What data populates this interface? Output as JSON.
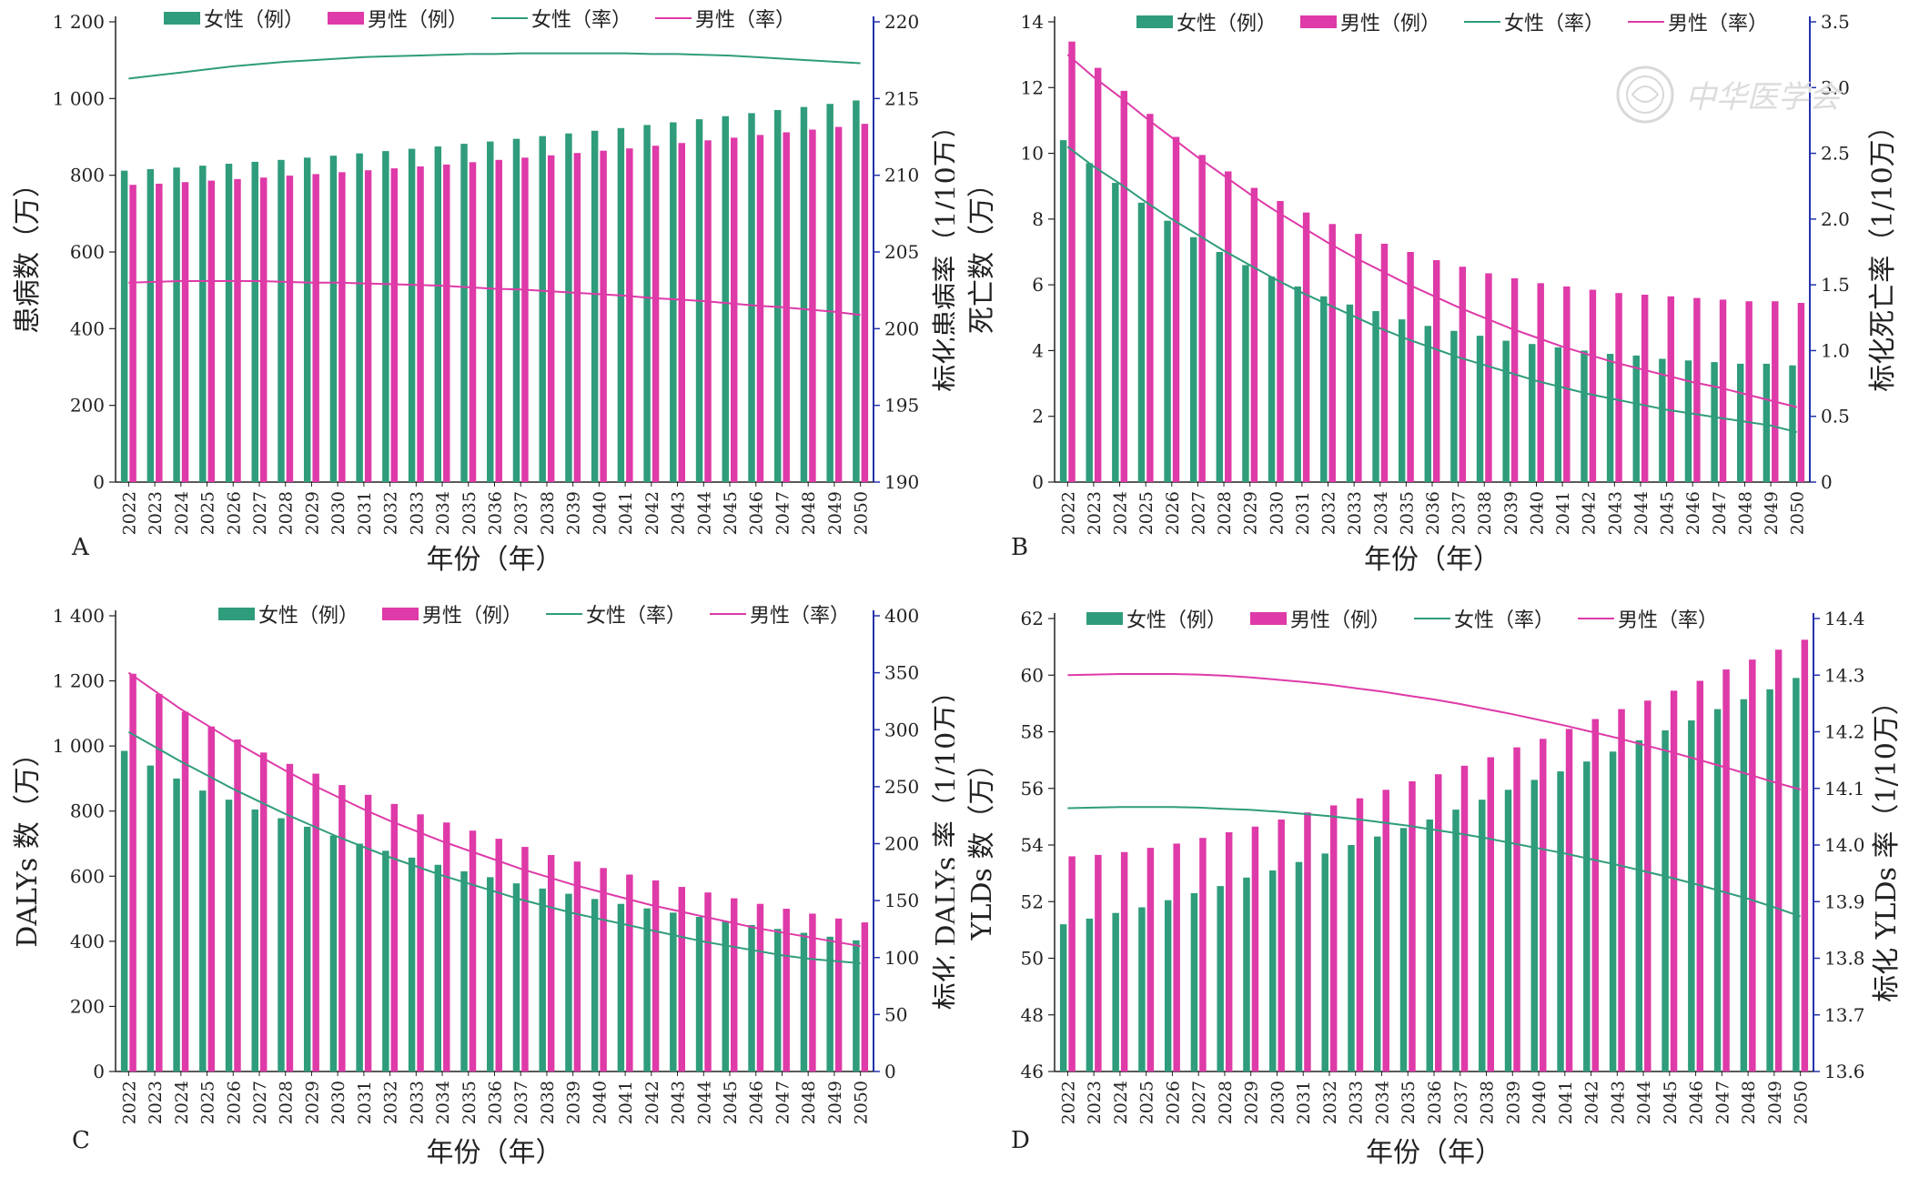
{
  "watermark": {
    "text": "中华医学会"
  },
  "legend_labels": {
    "female_count": "女性（例）",
    "male_count": "男性（例）",
    "female_rate": "女性（率）",
    "male_rate": "男性（率）"
  },
  "colors": {
    "female": "#2f9c7c",
    "male": "#de3aa8",
    "axis_right": "#2233aa",
    "axis": "#222222"
  },
  "chart_data": [
    {
      "panel": "A",
      "type": "bar",
      "categories": [
        "2022",
        "2023",
        "2024",
        "2025",
        "2026",
        "2027",
        "2028",
        "2029",
        "2030",
        "2031",
        "2032",
        "2033",
        "2034",
        "2035",
        "2036",
        "2037",
        "2038",
        "2039",
        "2040",
        "2041",
        "2042",
        "2043",
        "2044",
        "2045",
        "2046",
        "2047",
        "2048",
        "2049",
        "2050"
      ],
      "xlabel": "年份（年）",
      "ylabel": "患病数（万）",
      "y2label": "标化患病率（1/10万）",
      "ylim": [
        0,
        1200
      ],
      "yticks": [
        0,
        200,
        400,
        600,
        800,
        1000,
        1200
      ],
      "ytick_labels": [
        "0",
        "200",
        "400",
        "600",
        "800",
        "1 000",
        "1 200"
      ],
      "y2lim": [
        190,
        220
      ],
      "y2ticks": [
        190,
        195,
        200,
        205,
        210,
        215,
        220
      ],
      "series": [
        {
          "name": "女性（例）",
          "kind": "bar",
          "values": [
            812,
            816,
            820,
            825,
            830,
            835,
            840,
            846,
            851,
            857,
            863,
            869,
            875,
            882,
            888,
            895,
            902,
            909,
            916,
            923,
            931,
            938,
            946,
            954,
            962,
            970,
            978,
            986,
            995
          ]
        },
        {
          "name": "男性（例）",
          "kind": "bar",
          "values": [
            775,
            778,
            782,
            786,
            790,
            794,
            799,
            803,
            808,
            813,
            818,
            823,
            828,
            834,
            840,
            846,
            852,
            858,
            864,
            870,
            877,
            884,
            891,
            898,
            905,
            912,
            919,
            926,
            934
          ]
        },
        {
          "name": "女性（率）",
          "kind": "line",
          "axis": "right",
          "values": [
            216.3,
            216.5,
            216.7,
            216.9,
            217.1,
            217.25,
            217.4,
            217.5,
            217.6,
            217.7,
            217.75,
            217.8,
            217.85,
            217.9,
            217.9,
            217.95,
            217.95,
            217.95,
            217.95,
            217.95,
            217.9,
            217.9,
            217.85,
            217.8,
            217.7,
            217.6,
            217.5,
            217.4,
            217.3
          ]
        },
        {
          "name": "男性（率）",
          "kind": "line",
          "axis": "right",
          "values": [
            203.0,
            203.05,
            203.1,
            203.1,
            203.1,
            203.1,
            203.05,
            203.0,
            203.0,
            202.95,
            202.9,
            202.85,
            202.8,
            202.7,
            202.6,
            202.55,
            202.45,
            202.35,
            202.25,
            202.15,
            202.0,
            201.9,
            201.8,
            201.65,
            201.5,
            201.4,
            201.25,
            201.1,
            200.9
          ]
        }
      ]
    },
    {
      "panel": "B",
      "type": "bar",
      "categories": [
        "2022",
        "2023",
        "2024",
        "2025",
        "2026",
        "2027",
        "2028",
        "2029",
        "2030",
        "2031",
        "2032",
        "2033",
        "2034",
        "2035",
        "2036",
        "2037",
        "2038",
        "2039",
        "2040",
        "2041",
        "2042",
        "2043",
        "2044",
        "2045",
        "2046",
        "2047",
        "2048",
        "2049",
        "2050"
      ],
      "xlabel": "年份（年）",
      "ylabel": "死亡数（万）",
      "y2label": "标化死亡率（1/10万）",
      "ylim": [
        0,
        14
      ],
      "yticks": [
        0,
        2,
        4,
        6,
        8,
        10,
        12,
        14
      ],
      "ytick_labels": [
        "0",
        "2",
        "4",
        "6",
        "8",
        "10",
        "12",
        "14"
      ],
      "y2lim": [
        0,
        3.5
      ],
      "y2ticks": [
        0,
        0.5,
        1.0,
        1.5,
        2.0,
        2.5,
        3.0,
        3.5
      ],
      "y2tick_labels": [
        "0",
        "0.5",
        "1.0",
        "1.5",
        "2.0",
        "2.5",
        "3.0",
        "3.5"
      ],
      "series": [
        {
          "name": "女性（例）",
          "kind": "bar",
          "values": [
            10.4,
            9.7,
            9.1,
            8.5,
            7.95,
            7.45,
            7.0,
            6.6,
            6.25,
            5.95,
            5.65,
            5.4,
            5.2,
            4.95,
            4.75,
            4.6,
            4.45,
            4.3,
            4.2,
            4.1,
            4.0,
            3.9,
            3.85,
            3.75,
            3.7,
            3.65,
            3.6,
            3.6,
            3.55
          ]
        },
        {
          "name": "男性（例）",
          "kind": "bar",
          "values": [
            13.4,
            12.6,
            11.9,
            11.2,
            10.5,
            9.95,
            9.45,
            8.95,
            8.55,
            8.2,
            7.85,
            7.55,
            7.25,
            7.0,
            6.75,
            6.55,
            6.35,
            6.2,
            6.05,
            5.95,
            5.85,
            5.75,
            5.7,
            5.65,
            5.6,
            5.55,
            5.5,
            5.5,
            5.45
          ]
        },
        {
          "name": "女性（率）",
          "kind": "line",
          "axis": "right",
          "values": [
            2.55,
            2.4,
            2.27,
            2.13,
            2.0,
            1.88,
            1.76,
            1.65,
            1.54,
            1.44,
            1.35,
            1.26,
            1.17,
            1.09,
            1.02,
            0.95,
            0.89,
            0.83,
            0.77,
            0.72,
            0.67,
            0.63,
            0.59,
            0.55,
            0.52,
            0.49,
            0.46,
            0.43,
            0.38
          ]
        },
        {
          "name": "男性（率）",
          "kind": "line",
          "axis": "right",
          "values": [
            3.25,
            3.08,
            2.93,
            2.77,
            2.62,
            2.47,
            2.33,
            2.19,
            2.06,
            1.94,
            1.82,
            1.71,
            1.61,
            1.51,
            1.42,
            1.33,
            1.25,
            1.17,
            1.1,
            1.03,
            0.97,
            0.91,
            0.86,
            0.81,
            0.76,
            0.72,
            0.67,
            0.62,
            0.57
          ]
        }
      ]
    },
    {
      "panel": "C",
      "type": "bar",
      "categories": [
        "2022",
        "2023",
        "2024",
        "2025",
        "2026",
        "2027",
        "2028",
        "2029",
        "2030",
        "2031",
        "2032",
        "2033",
        "2034",
        "2035",
        "2036",
        "2037",
        "2038",
        "2039",
        "2040",
        "2041",
        "2042",
        "2043",
        "2044",
        "2045",
        "2046",
        "2047",
        "2048",
        "2049",
        "2050"
      ],
      "xlabel": "年份（年）",
      "ylabel": "DALYs 数（万）",
      "y2label": "标化 DALYs 率（1/10万）",
      "ylim": [
        0,
        1400
      ],
      "yticks": [
        0,
        200,
        400,
        600,
        800,
        1000,
        1200,
        1400
      ],
      "ytick_labels": [
        "0",
        "200",
        "400",
        "600",
        "800",
        "1 000",
        "1 200",
        "1 400"
      ],
      "y2lim": [
        0,
        400
      ],
      "y2ticks": [
        0,
        50,
        100,
        150,
        200,
        250,
        300,
        350,
        400
      ],
      "series": [
        {
          "name": "女性（例）",
          "kind": "bar",
          "values": [
            985,
            940,
            900,
            863,
            835,
            805,
            778,
            752,
            725,
            700,
            678,
            657,
            635,
            615,
            597,
            578,
            562,
            546,
            530,
            515,
            501,
            488,
            475,
            462,
            450,
            438,
            426,
            414,
            403
          ]
        },
        {
          "name": "男性（例）",
          "kind": "bar",
          "values": [
            1222,
            1160,
            1105,
            1060,
            1020,
            980,
            945,
            915,
            880,
            850,
            822,
            790,
            765,
            740,
            715,
            690,
            665,
            645,
            625,
            605,
            587,
            567,
            550,
            532,
            515,
            500,
            485,
            470,
            458
          ]
        },
        {
          "name": "女性（率）",
          "kind": "line",
          "axis": "right",
          "values": [
            298,
            285,
            272,
            260,
            248,
            237,
            226,
            216,
            206,
            197,
            188,
            180,
            172,
            165,
            158,
            151,
            145,
            139,
            134,
            129,
            124,
            119,
            114,
            110,
            106,
            102,
            99,
            97,
            95
          ]
        },
        {
          "name": "男性（率）",
          "kind": "line",
          "axis": "right",
          "values": [
            350,
            334,
            318,
            304,
            290,
            277,
            264,
            252,
            241,
            230,
            220,
            211,
            202,
            194,
            186,
            178,
            171,
            164,
            158,
            152,
            146,
            141,
            136,
            131,
            126,
            122,
            118,
            114,
            110
          ]
        }
      ]
    },
    {
      "panel": "D",
      "type": "bar",
      "categories": [
        "2022",
        "2023",
        "2024",
        "2025",
        "2026",
        "2027",
        "2028",
        "2029",
        "2030",
        "2031",
        "2032",
        "2033",
        "2034",
        "2035",
        "2036",
        "2037",
        "2038",
        "2039",
        "2040",
        "2041",
        "2042",
        "2043",
        "2044",
        "2045",
        "2046",
        "2047",
        "2048",
        "2049",
        "2050"
      ],
      "xlabel": "年份（年）",
      "ylabel": "YLDs 数（万）",
      "y2label": "标化 YLDs 率（1/10万）",
      "ylim": [
        46,
        62
      ],
      "yticks": [
        46,
        48,
        50,
        52,
        54,
        56,
        58,
        60,
        62
      ],
      "ytick_labels": [
        "46",
        "48",
        "50",
        "52",
        "54",
        "56",
        "58",
        "60",
        "62"
      ],
      "y2lim": [
        13.6,
        14.4
      ],
      "y2ticks": [
        13.6,
        13.7,
        13.8,
        13.9,
        14.0,
        14.1,
        14.2,
        14.3,
        14.4
      ],
      "y2tick_labels": [
        "13.6",
        "13.7",
        "13.8",
        "13.9",
        "14.0",
        "14.1",
        "14.2",
        "14.3",
        "14.4"
      ],
      "series": [
        {
          "name": "女性（例）",
          "kind": "bar",
          "values": [
            51.2,
            51.4,
            51.6,
            51.8,
            52.05,
            52.3,
            52.55,
            52.85,
            53.1,
            53.4,
            53.7,
            54.0,
            54.3,
            54.6,
            54.9,
            55.25,
            55.6,
            55.95,
            56.3,
            56.6,
            56.95,
            57.3,
            57.7,
            58.05,
            58.4,
            58.8,
            59.15,
            59.5,
            59.9
          ]
        },
        {
          "name": "男性（例）",
          "kind": "bar",
          "values": [
            53.6,
            53.65,
            53.75,
            53.9,
            54.05,
            54.25,
            54.45,
            54.65,
            54.9,
            55.15,
            55.4,
            55.65,
            55.95,
            56.25,
            56.5,
            56.8,
            57.1,
            57.45,
            57.75,
            58.1,
            58.45,
            58.8,
            59.1,
            59.45,
            59.8,
            60.2,
            60.55,
            60.9,
            61.25
          ]
        },
        {
          "name": "女性（率）",
          "kind": "line",
          "axis": "right",
          "values": [
            14.065,
            14.066,
            14.067,
            14.067,
            14.067,
            14.066,
            14.064,
            14.062,
            14.059,
            14.055,
            14.051,
            14.046,
            14.04,
            14.034,
            14.027,
            14.02,
            14.012,
            14.003,
            13.994,
            13.985,
            13.975,
            13.965,
            13.954,
            13.943,
            13.931,
            13.918,
            13.905,
            13.89,
            13.874
          ]
        },
        {
          "name": "男性（率）",
          "kind": "line",
          "axis": "right",
          "values": [
            14.3,
            14.301,
            14.302,
            14.302,
            14.302,
            14.301,
            14.299,
            14.296,
            14.292,
            14.288,
            14.283,
            14.277,
            14.271,
            14.264,
            14.257,
            14.249,
            14.24,
            14.231,
            14.221,
            14.211,
            14.2,
            14.189,
            14.177,
            14.165,
            14.152,
            14.139,
            14.125,
            14.111,
            14.098
          ]
        }
      ]
    }
  ]
}
